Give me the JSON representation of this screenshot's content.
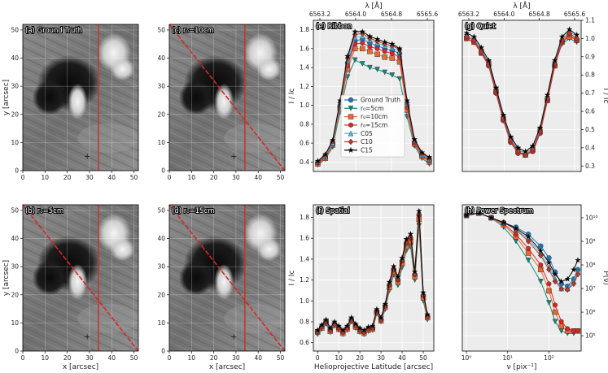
{
  "figure": {
    "image_panels": [
      {
        "id": "a",
        "title": "(a) Ground Truth",
        "diagonal": false
      },
      {
        "id": "c",
        "title": "(c) r₀=10cm",
        "diagonal": true
      },
      {
        "id": "b",
        "title": "(b) r₀=5cm",
        "diagonal": true
      },
      {
        "id": "d",
        "title": "(d) r₀=15cm",
        "diagonal": true
      }
    ],
    "image_axes": {
      "xlabel": "x [arcsec]",
      "ylabel": "y [arcsec]",
      "xticks": [
        "0",
        "10",
        "20",
        "30",
        "40",
        "50"
      ],
      "yticks": [
        "0",
        "10",
        "20",
        "30",
        "40",
        "50"
      ],
      "slit_x": 34,
      "markers": [
        [
          18,
          29
        ],
        [
          29,
          5
        ]
      ]
    },
    "colors": {
      "ground_truth": "#1f77b4",
      "r0_5": "#17877a",
      "r0_10": "#e36c2e",
      "r0_15": "#d62728",
      "c05": "#59b4e0",
      "c10": "#b03a2e",
      "c15": "#000000",
      "slit": "#c0392b",
      "panel_bg": "#ececec"
    }
  },
  "chart_data": [
    {
      "type": "line",
      "panel": "e",
      "title": "(e) Ribbon",
      "top_xlabel": "λ [Å]",
      "top_xticks": [
        "6563.2",
        "6564.0",
        "6564.8",
        "6565.6"
      ],
      "ylabel": "I / Iᴄ",
      "yticks": [
        "0.4",
        "0.6",
        "0.8",
        "1.0",
        "1.2",
        "1.4",
        "1.6",
        "1.8"
      ],
      "ylim": [
        0.3,
        1.9
      ],
      "xlim": [
        -0.6,
        15.6
      ],
      "x": [
        0,
        1,
        2,
        3,
        4,
        5,
        6,
        7,
        8,
        9,
        10,
        11,
        12,
        13,
        14,
        15
      ],
      "series": [
        {
          "name": "Ground Truth",
          "marker": "circle",
          "values": [
            0.39,
            0.45,
            0.6,
            1.0,
            1.45,
            1.68,
            1.7,
            1.66,
            1.63,
            1.6,
            1.58,
            1.55,
            1.0,
            0.6,
            0.47,
            0.42
          ]
        },
        {
          "name": "r₀=5cm",
          "marker": "tri-down",
          "values": [
            0.37,
            0.43,
            0.56,
            0.93,
            1.3,
            1.48,
            1.44,
            1.4,
            1.38,
            1.35,
            1.32,
            1.28,
            0.88,
            0.57,
            0.44,
            0.38
          ]
        },
        {
          "name": "r₀=10cm",
          "marker": "square",
          "values": [
            0.38,
            0.44,
            0.58,
            0.97,
            1.38,
            1.6,
            1.6,
            1.57,
            1.54,
            1.51,
            1.5,
            1.46,
            0.95,
            0.59,
            0.46,
            0.4
          ]
        },
        {
          "name": "r₀=15cm",
          "marker": "hexagon",
          "values": [
            0.39,
            0.45,
            0.59,
            0.99,
            1.42,
            1.65,
            1.66,
            1.62,
            1.6,
            1.57,
            1.55,
            1.51,
            0.98,
            0.6,
            0.47,
            0.41
          ]
        },
        {
          "name": "C05",
          "marker": "tri-up",
          "values": [
            0.4,
            0.46,
            0.6,
            1.01,
            1.47,
            1.72,
            1.73,
            1.69,
            1.66,
            1.63,
            1.61,
            1.57,
            1.02,
            0.62,
            0.48,
            0.43
          ]
        },
        {
          "name": "C10",
          "marker": "diamond",
          "values": [
            0.4,
            0.47,
            0.62,
            1.03,
            1.5,
            1.75,
            1.76,
            1.71,
            1.68,
            1.65,
            1.63,
            1.59,
            1.03,
            0.62,
            0.49,
            0.44
          ]
        },
        {
          "name": "C15",
          "marker": "star",
          "values": [
            0.41,
            0.48,
            0.63,
            1.05,
            1.52,
            1.78,
            1.78,
            1.73,
            1.7,
            1.67,
            1.65,
            1.6,
            1.05,
            0.64,
            0.5,
            0.45
          ]
        }
      ]
    },
    {
      "type": "line",
      "panel": "g",
      "title": "(g) Quiet",
      "top_xlabel": "λ [Å]",
      "top_xticks": [
        "6563.2",
        "6564.0",
        "6564.8",
        "6565.6"
      ],
      "ylabel": "I / Iᴄ",
      "yticks": [
        "0.3",
        "0.4",
        "0.5",
        "0.6",
        "0.7",
        "0.8",
        "0.9",
        "1.0",
        "1.1"
      ],
      "ylim": [
        0.27,
        1.1
      ],
      "xlim": [
        -0.6,
        15.6
      ],
      "x": [
        0,
        1,
        2,
        3,
        4,
        5,
        6,
        7,
        8,
        9,
        10,
        11,
        12,
        13,
        14,
        15
      ],
      "series": [
        {
          "name": "Ground Truth",
          "marker": "circle",
          "values": [
            1.0,
            0.98,
            0.92,
            0.85,
            0.7,
            0.55,
            0.43,
            0.37,
            0.36,
            0.38,
            0.48,
            0.66,
            0.85,
            0.98,
            1.02,
            0.99
          ]
        },
        {
          "name": "r₀=5cm",
          "marker": "tri-down",
          "values": [
            1.01,
            0.99,
            0.93,
            0.87,
            0.72,
            0.57,
            0.45,
            0.39,
            0.37,
            0.4,
            0.5,
            0.67,
            0.86,
            0.97,
            1.0,
            0.98
          ]
        },
        {
          "name": "r₀=10cm",
          "marker": "square",
          "values": [
            1.0,
            0.98,
            0.92,
            0.86,
            0.71,
            0.56,
            0.44,
            0.38,
            0.36,
            0.39,
            0.49,
            0.66,
            0.85,
            0.98,
            1.01,
            0.99
          ]
        },
        {
          "name": "r₀=15cm",
          "marker": "hexagon",
          "values": [
            1.0,
            0.98,
            0.92,
            0.85,
            0.7,
            0.55,
            0.43,
            0.37,
            0.36,
            0.38,
            0.48,
            0.66,
            0.85,
            0.98,
            1.02,
            0.99
          ]
        },
        {
          "name": "C05",
          "marker": "tri-up",
          "values": [
            1.02,
            1.0,
            0.94,
            0.87,
            0.72,
            0.57,
            0.45,
            0.39,
            0.37,
            0.4,
            0.5,
            0.68,
            0.87,
            1.0,
            1.04,
            1.01
          ]
        },
        {
          "name": "C10",
          "marker": "diamond",
          "values": [
            1.01,
            0.99,
            0.93,
            0.86,
            0.71,
            0.56,
            0.44,
            0.38,
            0.36,
            0.39,
            0.49,
            0.67,
            0.86,
            0.99,
            1.03,
            1.0
          ]
        },
        {
          "name": "C15",
          "marker": "star",
          "values": [
            1.03,
            1.01,
            0.95,
            0.88,
            0.73,
            0.58,
            0.46,
            0.4,
            0.38,
            0.41,
            0.51,
            0.69,
            0.88,
            1.01,
            1.05,
            1.02
          ]
        }
      ]
    },
    {
      "type": "line",
      "panel": "f",
      "title": "(f) Spatial",
      "xlabel": "Helioprojective Latitude [arcsec]",
      "ylabel": "I / Iᴄ",
      "xticks": [
        "0",
        "10",
        "20",
        "30",
        "40",
        "50"
      ],
      "yticks": [
        "0.6",
        "0.8",
        "1.0",
        "1.2",
        "1.4",
        "1.6",
        "1.8"
      ],
      "xlim": [
        -2,
        55
      ],
      "ylim": [
        0.52,
        1.92
      ],
      "x": [
        0,
        2,
        4,
        6,
        8,
        10,
        12,
        14,
        16,
        18,
        20,
        22,
        24,
        26,
        28,
        30,
        32,
        34,
        36,
        38,
        40,
        42,
        44,
        46,
        48,
        50,
        52
      ],
      "series": [
        {
          "name": "Ground Truth",
          "marker": "circle",
          "values": [
            0.7,
            0.75,
            0.8,
            0.72,
            0.78,
            0.74,
            0.7,
            0.74,
            0.82,
            0.76,
            0.72,
            0.7,
            0.73,
            0.74,
            0.9,
            0.82,
            0.95,
            1.15,
            1.3,
            1.2,
            1.38,
            1.55,
            1.6,
            1.25,
            1.82,
            1.05,
            0.85
          ]
        },
        {
          "name": "r₀=5cm",
          "marker": "tri-down",
          "values": [
            0.68,
            0.73,
            0.78,
            0.7,
            0.76,
            0.72,
            0.68,
            0.72,
            0.8,
            0.74,
            0.7,
            0.68,
            0.71,
            0.72,
            0.88,
            0.8,
            0.92,
            1.1,
            1.25,
            1.15,
            1.32,
            1.48,
            1.52,
            1.2,
            1.72,
            1.0,
            0.82
          ]
        },
        {
          "name": "r₀=10cm",
          "marker": "square",
          "values": [
            0.7,
            0.74,
            0.8,
            0.71,
            0.77,
            0.73,
            0.69,
            0.73,
            0.81,
            0.75,
            0.71,
            0.69,
            0.72,
            0.73,
            0.89,
            0.81,
            0.94,
            1.13,
            1.28,
            1.18,
            1.36,
            1.52,
            1.57,
            1.23,
            1.78,
            1.03,
            0.84
          ]
        },
        {
          "name": "r₀=15cm",
          "marker": "hexagon",
          "values": [
            0.7,
            0.75,
            0.8,
            0.72,
            0.78,
            0.74,
            0.7,
            0.74,
            0.82,
            0.76,
            0.72,
            0.7,
            0.73,
            0.74,
            0.9,
            0.82,
            0.95,
            1.15,
            1.3,
            1.2,
            1.38,
            1.55,
            1.6,
            1.25,
            1.82,
            1.05,
            0.85
          ]
        },
        {
          "name": "C05",
          "marker": "tri-up",
          "values": [
            0.71,
            0.76,
            0.81,
            0.73,
            0.79,
            0.75,
            0.71,
            0.75,
            0.83,
            0.77,
            0.73,
            0.71,
            0.74,
            0.75,
            0.91,
            0.83,
            0.96,
            1.17,
            1.32,
            1.22,
            1.4,
            1.58,
            1.63,
            1.27,
            1.85,
            1.07,
            0.86
          ]
        },
        {
          "name": "C10",
          "marker": "diamond",
          "values": [
            0.71,
            0.75,
            0.8,
            0.72,
            0.78,
            0.74,
            0.7,
            0.74,
            0.82,
            0.76,
            0.72,
            0.7,
            0.73,
            0.74,
            0.9,
            0.82,
            0.95,
            1.16,
            1.31,
            1.21,
            1.39,
            1.56,
            1.61,
            1.26,
            1.83,
            1.06,
            0.85
          ]
        },
        {
          "name": "C15",
          "marker": "star",
          "values": [
            0.72,
            0.77,
            0.82,
            0.74,
            0.8,
            0.76,
            0.72,
            0.76,
            0.84,
            0.78,
            0.74,
            0.72,
            0.75,
            0.76,
            0.92,
            0.84,
            0.97,
            1.18,
            1.33,
            1.23,
            1.41,
            1.59,
            1.64,
            1.28,
            1.86,
            1.08,
            0.87
          ]
        }
      ]
    },
    {
      "type": "line",
      "panel": "h",
      "title": "(h) Power Spectrum",
      "xlabel": "ν [pix⁻¹]",
      "ylabel": "P(ν)",
      "xscale": "log",
      "yscale": "log",
      "xticks": [
        "10⁰",
        "10¹",
        "10²"
      ],
      "yticks": [
        "10⁵",
        "10⁶",
        "10⁷",
        "10⁸",
        "10⁹",
        "10¹⁰"
      ],
      "xlim_log10": [
        -0.1,
        2.78
      ],
      "ylim_log10": [
        4.35,
        10.55
      ],
      "x_log10": [
        0,
        0.3,
        0.6,
        0.9,
        1.2,
        1.5,
        1.8,
        2.0,
        2.15,
        2.3,
        2.45,
        2.6,
        2.7
      ],
      "series": [
        {
          "name": "Ground Truth",
          "marker": "circle",
          "values_log10": [
            10.1,
            10.2,
            10.0,
            9.8,
            9.6,
            9.3,
            8.8,
            8.3,
            7.7,
            7.2,
            7.1,
            7.4,
            7.8
          ]
        },
        {
          "name": "r₀=5cm",
          "marker": "tri-down",
          "values_log10": [
            10.1,
            10.2,
            10.0,
            9.6,
            9.0,
            8.2,
            7.3,
            6.4,
            5.6,
            5.2,
            5.1,
            5.1,
            5.2
          ]
        },
        {
          "name": "r₀=10cm",
          "marker": "square",
          "values_log10": [
            10.1,
            10.2,
            10.0,
            9.7,
            9.2,
            8.5,
            7.8,
            6.9,
            6.0,
            5.4,
            5.2,
            5.2,
            5.2
          ]
        },
        {
          "name": "r₀=15cm",
          "marker": "hexagon",
          "values_log10": [
            10.1,
            10.2,
            10.0,
            9.75,
            9.3,
            8.7,
            8.0,
            7.2,
            6.3,
            5.6,
            5.3,
            5.2,
            5.2
          ]
        },
        {
          "name": "C05",
          "marker": "tri-up",
          "values_log10": [
            10.1,
            10.2,
            10.0,
            9.8,
            9.5,
            9.1,
            8.5,
            7.9,
            7.4,
            7.0,
            7.0,
            7.3,
            7.7
          ]
        },
        {
          "name": "C10",
          "marker": "diamond",
          "values_log10": [
            10.1,
            10.2,
            10.0,
            9.8,
            9.5,
            9.0,
            8.4,
            7.8,
            7.3,
            7.0,
            6.95,
            7.2,
            7.6
          ]
        },
        {
          "name": "C15",
          "marker": "star",
          "values_log10": [
            10.1,
            10.2,
            10.0,
            9.8,
            9.55,
            9.2,
            8.6,
            8.1,
            7.6,
            7.3,
            7.4,
            7.8,
            8.2
          ]
        }
      ]
    }
  ]
}
